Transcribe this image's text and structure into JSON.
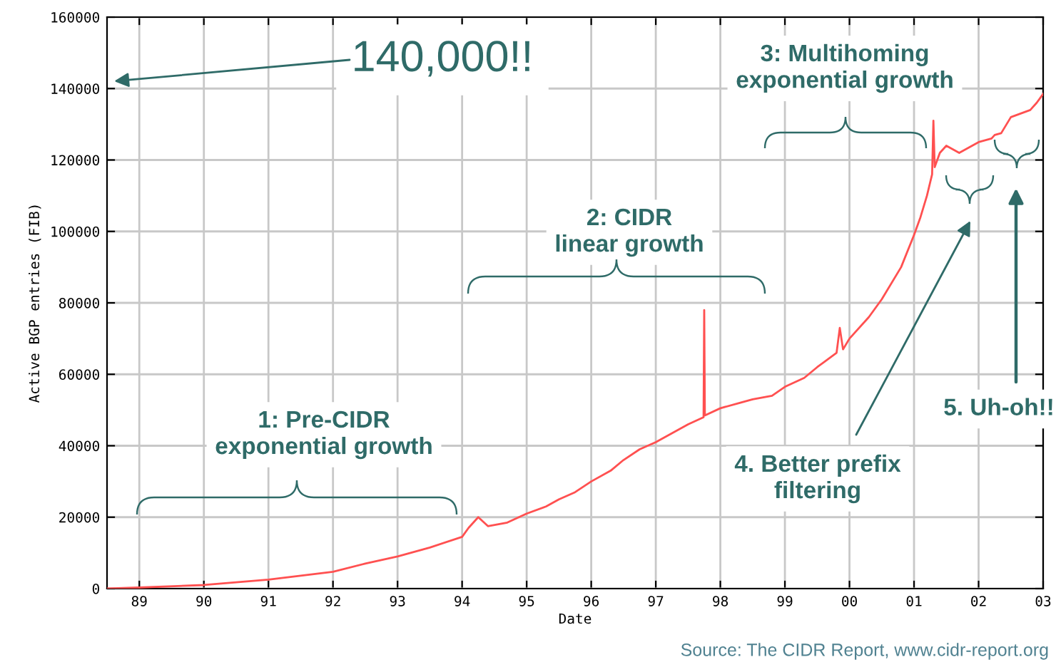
{
  "chart_data": {
    "type": "line",
    "xlabel": "Date",
    "ylabel": "Active BGP entries (FIB)",
    "annotations": [
      "140,000!!",
      "1: Pre-CIDR\nexponential growth",
      "2: CIDR\nlinear growth",
      "3: Multihoming\nexponential growth",
      "4. Better prefix\nfiltering",
      "5. Uh-oh!!",
      "Source: The CIDR Report, www.cidr-report.org"
    ],
    "series": [
      {
        "color": "#ff5050",
        "x": [
          1988.5,
          1989,
          1990,
          1991,
          1992,
          1992.5,
          1993,
          1993.5,
          1994,
          1994.1,
          1994.25,
          1994.4,
          1994.7,
          1995,
          1995.3,
          1995.5,
          1995.75,
          1996,
          1996.3,
          1996.5,
          1996.75,
          1997,
          1997.3,
          1997.5,
          1997.74,
          1997.75,
          1997.76,
          1998,
          1998.3,
          1998.5,
          1998.8,
          1999,
          1999.3,
          1999.5,
          1999.8,
          1999.85,
          1999.9,
          2000,
          2000.3,
          2000.5,
          2000.8,
          2001,
          2001.1,
          2001.2,
          2001.28,
          2001.3,
          2001.32,
          2001.4,
          2001.5,
          2001.7,
          2002,
          2002.2,
          2002.25,
          2002.35,
          2002.5,
          2002.8,
          2002.9,
          2003
        ],
        "values": [
          0,
          300,
          1000,
          2500,
          4700,
          7000,
          9000,
          11500,
          14500,
          17000,
          20000,
          17500,
          18500,
          21000,
          23000,
          25000,
          27000,
          30000,
          33000,
          36000,
          39000,
          41000,
          44000,
          46000,
          48000,
          78000,
          48500,
          50500,
          52000,
          53000,
          54000,
          56500,
          59000,
          62000,
          66000,
          73000,
          67000,
          70000,
          76000,
          81000,
          90000,
          99000,
          104000,
          110000,
          116000,
          131000,
          118000,
          122000,
          124000,
          122000,
          125000,
          126000,
          127000,
          127500,
          132000,
          134000,
          136000,
          138500
        ]
      }
    ],
    "xlim": [
      1988.5,
      2003
    ],
    "ylim": [
      0,
      160000
    ],
    "xticks": [
      {
        "value": 1989,
        "label": "89"
      },
      {
        "value": 1990,
        "label": "90"
      },
      {
        "value": 1991,
        "label": "91"
      },
      {
        "value": 1992,
        "label": "92"
      },
      {
        "value": 1993,
        "label": "93"
      },
      {
        "value": 1994,
        "label": "94"
      },
      {
        "value": 1995,
        "label": "95"
      },
      {
        "value": 1996,
        "label": "96"
      },
      {
        "value": 1997,
        "label": "97"
      },
      {
        "value": 1998,
        "label": "98"
      },
      {
        "value": 1999,
        "label": "99"
      },
      {
        "value": 2000,
        "label": "00"
      },
      {
        "value": 2001,
        "label": "01"
      },
      {
        "value": 2002,
        "label": "02"
      },
      {
        "value": 2003,
        "label": "03"
      }
    ],
    "yticks": [
      0,
      20000,
      40000,
      60000,
      80000,
      100000,
      120000,
      140000,
      160000
    ],
    "grid": true,
    "marker": "none",
    "line_style": "solid",
    "legend": false
  }
}
